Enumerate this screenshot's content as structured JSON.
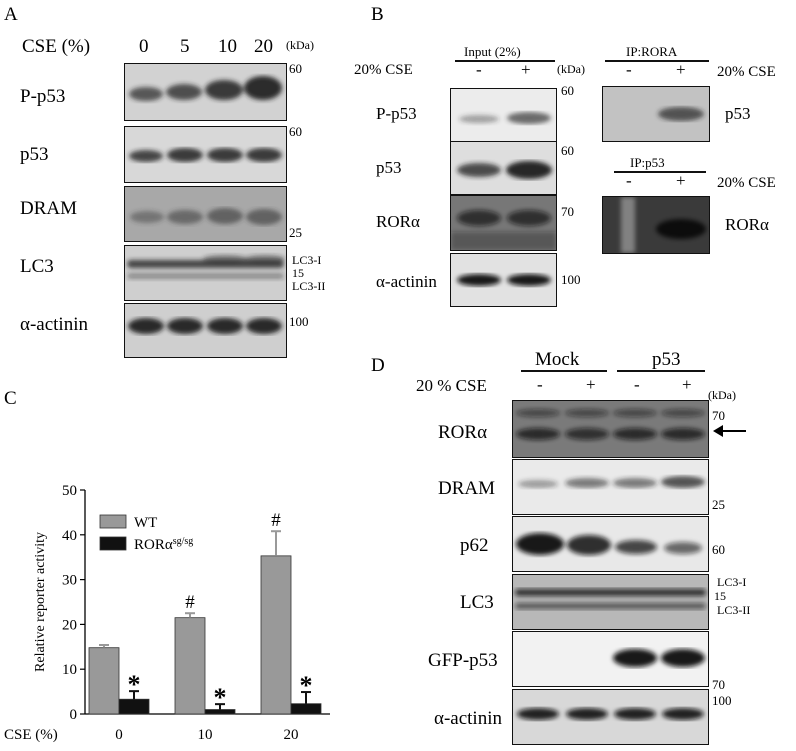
{
  "panel_a": {
    "letter": "A",
    "cse_label": "CSE (%)",
    "doses": [
      "0",
      "5",
      "10",
      "20"
    ],
    "kda": "(kDa)",
    "blots": [
      {
        "name": "P-p53",
        "mw": [
          "60"
        ]
      },
      {
        "name": "p53",
        "mw": [
          "60"
        ]
      },
      {
        "name": "DRAM",
        "mw": [
          "25"
        ]
      },
      {
        "name": "LC3",
        "mw": [
          "LC3-I",
          "15",
          "LC3-II"
        ]
      },
      {
        "name": "α-actinin",
        "mw": [
          "100"
        ]
      }
    ]
  },
  "panel_b": {
    "letter": "B",
    "input_title": "Input (2%)",
    "cse_label": "20% CSE",
    "signs": [
      "-",
      "+"
    ],
    "kda": "(kDa)",
    "blots": [
      {
        "name": "P-p53",
        "mw": "60"
      },
      {
        "name": "p53",
        "mw": "60"
      },
      {
        "name": "RORα",
        "mw": "70"
      },
      {
        "name": "α-actinin",
        "mw": "100"
      }
    ],
    "ip_rora": {
      "title": "IP:RORA",
      "cse_label": "20% CSE",
      "signs": [
        "-",
        "+"
      ],
      "blot": "p53"
    },
    "ip_p53": {
      "title": "IP:p53",
      "cse_label": "20% CSE",
      "signs": [
        "-",
        "+"
      ],
      "blot": "RORα"
    }
  },
  "panel_c": {
    "letter": "C",
    "chart_data": {
      "type": "bar",
      "categories": [
        "0",
        "10",
        "20"
      ],
      "xlabel": "CSE (%)",
      "ylabel": "Relative reporter activity",
      "ylim": [
        0,
        50
      ],
      "yticks": [
        0,
        10,
        20,
        30,
        40,
        50
      ],
      "series": [
        {
          "name": "WT",
          "values": [
            14.8,
            21.5,
            35.3
          ],
          "errors": [
            0.6,
            1.0,
            5.5
          ],
          "color": "#999999",
          "marks": [
            "",
            "#",
            "#"
          ]
        },
        {
          "name": "RORα",
          "name_sup": "sg/sg",
          "values": [
            3.3,
            1.0,
            2.3
          ],
          "errors": [
            1.8,
            1.2,
            2.6
          ],
          "color": "#111111",
          "marks": [
            "*",
            "*",
            "*"
          ]
        }
      ],
      "legend_position": "top-left"
    }
  },
  "panel_d": {
    "letter": "D",
    "group1": "Mock",
    "group2": "p53",
    "cse_label": "20 % CSE",
    "signs": [
      "-",
      "+",
      "-",
      "+"
    ],
    "kda": "(kDa)",
    "blots": [
      {
        "name": "RORα",
        "mw": [
          "70"
        ]
      },
      {
        "name": "DRAM",
        "mw": [
          "25"
        ]
      },
      {
        "name": "p62",
        "mw": [
          "60"
        ]
      },
      {
        "name": "LC3",
        "mw": [
          "LC3-I",
          "15",
          "LC3-II"
        ]
      },
      {
        "name": "GFP-p53",
        "mw": [
          "70"
        ]
      },
      {
        "name": "α-actinin",
        "mw": [
          "100"
        ]
      }
    ]
  }
}
